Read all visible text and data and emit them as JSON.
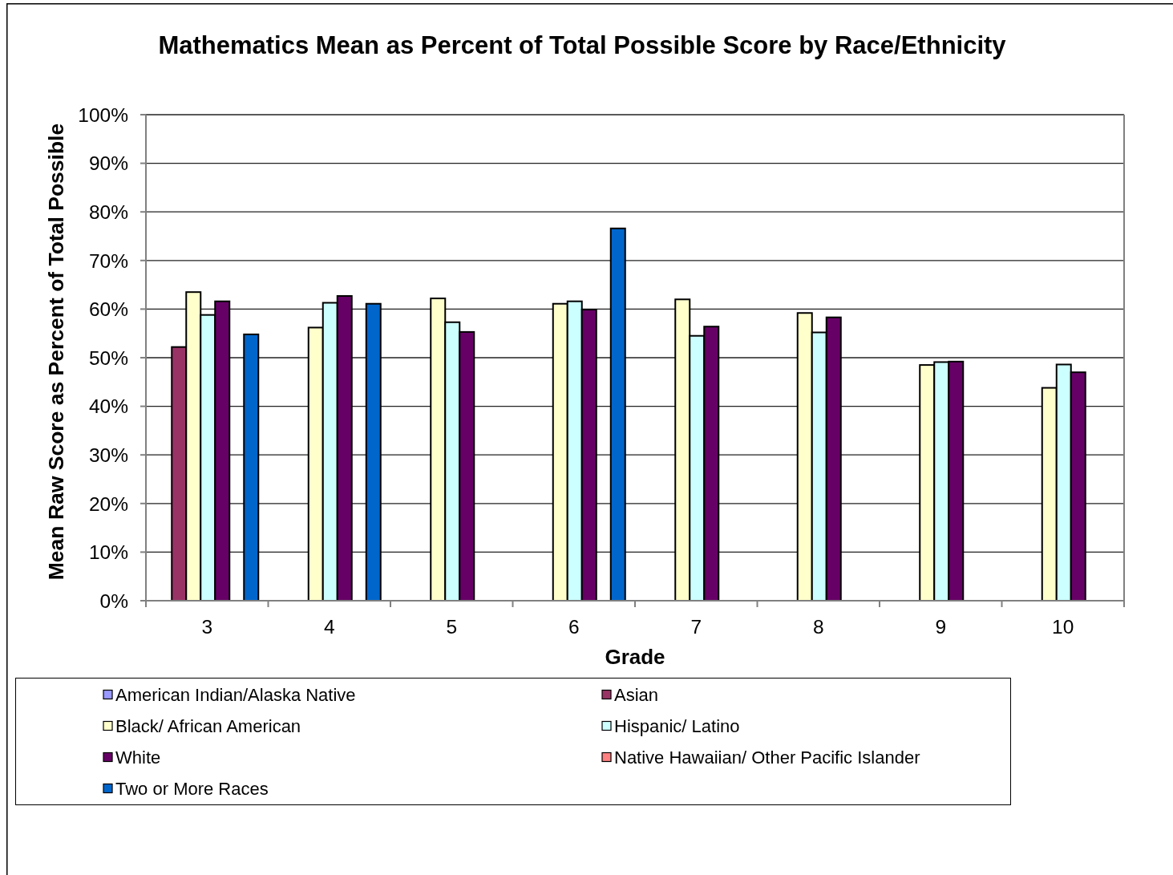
{
  "chart_data": {
    "type": "bar",
    "title": "Mathematics Mean as Percent of Total Possible Score by Race/Ethnicity",
    "xlabel": "Grade",
    "ylabel": "Mean Raw Score as Percent of Total Possible",
    "categories": [
      "3",
      "4",
      "5",
      "6",
      "7",
      "8",
      "9",
      "10"
    ],
    "series": [
      {
        "name": "American Indian/Alaska Native",
        "color": "#9999ff",
        "values": [
          null,
          null,
          null,
          null,
          null,
          null,
          null,
          null
        ]
      },
      {
        "name": "Asian",
        "color": "#993366",
        "values": [
          52.2,
          null,
          null,
          null,
          null,
          null,
          null,
          null
        ]
      },
      {
        "name": "Black/ African American",
        "color": "#ffffcc",
        "values": [
          63.5,
          56.2,
          62.2,
          61.1,
          62.0,
          59.2,
          48.5,
          43.8
        ]
      },
      {
        "name": "Hispanic/ Latino",
        "color": "#ccffff",
        "values": [
          58.8,
          61.3,
          57.3,
          61.6,
          54.5,
          55.2,
          49.1,
          48.6
        ]
      },
      {
        "name": "White",
        "color": "#660066",
        "values": [
          61.6,
          62.7,
          55.3,
          59.9,
          56.4,
          58.3,
          49.2,
          47.0
        ]
      },
      {
        "name": "Native Hawaiian/ Other Pacific Islander",
        "color": "#ff8080",
        "values": [
          null,
          null,
          null,
          null,
          null,
          null,
          null,
          null
        ]
      },
      {
        "name": "Two or More Races",
        "color": "#0066cc",
        "values": [
          54.8,
          61.1,
          null,
          76.6,
          null,
          null,
          null,
          null
        ]
      }
    ],
    "ylim": [
      0,
      100
    ],
    "yticks": [
      {
        "value": 0,
        "label": "0%"
      },
      {
        "value": 10,
        "label": "10%"
      },
      {
        "value": 20,
        "label": "20%"
      },
      {
        "value": 30,
        "label": "30%"
      },
      {
        "value": 40,
        "label": "40%"
      },
      {
        "value": 50,
        "label": "50%"
      },
      {
        "value": 60,
        "label": "60%"
      },
      {
        "value": 70,
        "label": "70%"
      },
      {
        "value": 80,
        "label": "80%"
      },
      {
        "value": 90,
        "label": "90%"
      },
      {
        "value": 100,
        "label": "100%"
      }
    ],
    "grid": "y",
    "legend": "bottom"
  }
}
